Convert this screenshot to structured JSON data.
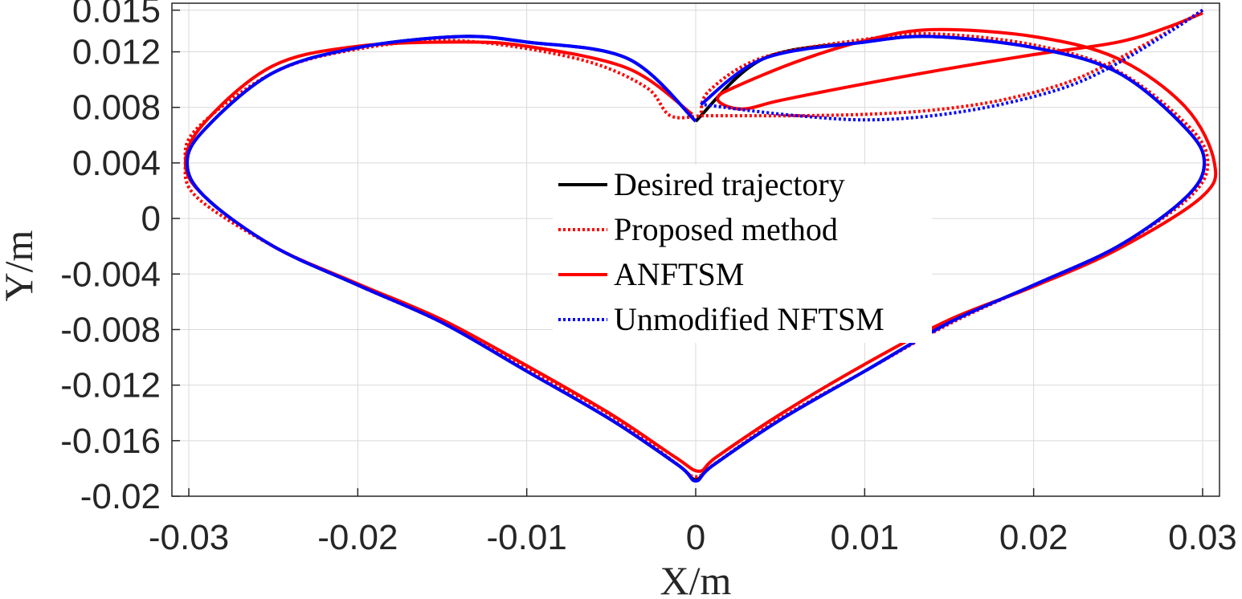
{
  "chart_data": {
    "type": "line",
    "title": "",
    "xlabel": "X/m",
    "ylabel": "Y/m",
    "xlim": [
      -0.031,
      0.031
    ],
    "ylim": [
      -0.02,
      0.0155
    ],
    "grid": true,
    "legend_position": "center",
    "x_ticks": [
      -0.03,
      -0.02,
      -0.01,
      0,
      0.01,
      0.02,
      0.03
    ],
    "x_tick_labels": [
      "-0.03",
      "-0.02",
      "-0.01",
      "0",
      "0.01",
      "0.02",
      "0.03"
    ],
    "y_ticks": [
      0.015,
      0.012,
      0.008,
      0.004,
      0,
      -0.004,
      -0.008,
      -0.012,
      -0.016,
      -0.02
    ],
    "y_tick_labels": [
      "0.015",
      "0.012",
      "0.008",
      "0.004",
      "0",
      "-0.004",
      "-0.008",
      "-0.012",
      "-0.016",
      "-0.02"
    ],
    "series": [
      {
        "name": "Desired trajectory",
        "color": "#000000",
        "style": "solid",
        "points": [
          [
            0,
            0.007
          ],
          [
            -0.004,
            0.0115
          ],
          [
            -0.01,
            0.0127
          ],
          [
            -0.014,
            0.0131
          ],
          [
            -0.02,
            0.0123
          ],
          [
            -0.025,
            0.0105
          ],
          [
            -0.029,
            0.0065
          ],
          [
            -0.0301,
            0.004
          ],
          [
            -0.029,
            0.0015
          ],
          [
            -0.025,
            -0.002
          ],
          [
            -0.02,
            -0.0048
          ],
          [
            -0.015,
            -0.0075
          ],
          [
            -0.01,
            -0.011
          ],
          [
            -0.005,
            -0.0145
          ],
          [
            -0.001,
            -0.0178
          ],
          [
            0,
            -0.0188
          ],
          [
            0.001,
            -0.0178
          ],
          [
            0.005,
            -0.0145
          ],
          [
            0.01,
            -0.011
          ],
          [
            0.015,
            -0.0075
          ],
          [
            0.02,
            -0.0048
          ],
          [
            0.025,
            -0.002
          ],
          [
            0.029,
            0.0015
          ],
          [
            0.0301,
            0.004
          ],
          [
            0.029,
            0.0065
          ],
          [
            0.025,
            0.0105
          ],
          [
            0.02,
            0.0123
          ],
          [
            0.014,
            0.0131
          ],
          [
            0.01,
            0.0127
          ],
          [
            0.004,
            0.0115
          ],
          [
            0,
            0.007
          ]
        ]
      },
      {
        "name": "Proposed method",
        "color": "#ff0000",
        "style": "dotted",
        "points": [
          [
            0.03,
            0.015
          ],
          [
            0.028,
            0.0135
          ],
          [
            0.025,
            0.0115
          ],
          [
            0.022,
            0.0098
          ],
          [
            0.018,
            0.0085
          ],
          [
            0.014,
            0.0078
          ],
          [
            0.01,
            0.0075
          ],
          [
            0.006,
            0.0074
          ],
          [
            0.003,
            0.0074
          ],
          [
            0.0005,
            0.0074
          ],
          [
            -0.0015,
            0.0074
          ],
          [
            -0.003,
            0.0095
          ],
          [
            -0.007,
            0.0115
          ],
          [
            -0.014,
            0.0128
          ],
          [
            -0.02,
            0.0122
          ],
          [
            -0.025,
            0.0105
          ],
          [
            -0.0295,
            0.0065
          ],
          [
            -0.0302,
            0.004
          ],
          [
            -0.0295,
            0.0015
          ],
          [
            -0.025,
            -0.002
          ],
          [
            -0.02,
            -0.0048
          ],
          [
            -0.015,
            -0.0075
          ],
          [
            -0.01,
            -0.0108
          ],
          [
            -0.005,
            -0.0142
          ],
          [
            -0.0012,
            -0.0176
          ],
          [
            0,
            -0.0186
          ],
          [
            0.0012,
            -0.0176
          ],
          [
            0.005,
            -0.0144
          ],
          [
            0.01,
            -0.011
          ],
          [
            0.015,
            -0.0076
          ],
          [
            0.02,
            -0.0048
          ],
          [
            0.025,
            -0.002
          ],
          [
            0.0292,
            0.0015
          ],
          [
            0.0303,
            0.004
          ],
          [
            0.0292,
            0.0066
          ],
          [
            0.025,
            0.0106
          ],
          [
            0.02,
            0.0125
          ],
          [
            0.014,
            0.0133
          ],
          [
            0.01,
            0.0129
          ],
          [
            0.004,
            0.0116
          ],
          [
            0.0008,
            0.0092
          ],
          [
            0.0003,
            0.0074
          ]
        ]
      },
      {
        "name": "ANFTSM",
        "color": "#ff0000",
        "style": "solid",
        "points": [
          [
            0.03,
            0.0148
          ],
          [
            0.028,
            0.0138
          ],
          [
            0.025,
            0.0127
          ],
          [
            0.02,
            0.0118
          ],
          [
            0.015,
            0.0108
          ],
          [
            0.01,
            0.0097
          ],
          [
            0.005,
            0.0085
          ],
          [
            0.003,
            0.0079
          ],
          [
            0.0018,
            0.0081
          ],
          [
            0.0013,
            0.0087
          ],
          [
            0.0022,
            0.0094
          ],
          [
            0.006,
            0.0113
          ],
          [
            0.01,
            0.0128
          ],
          [
            0.014,
            0.0136
          ],
          [
            0.02,
            0.0131
          ],
          [
            0.025,
            0.0115
          ],
          [
            0.029,
            0.008
          ],
          [
            0.0307,
            0.004
          ],
          [
            0.0299,
            0.0015
          ],
          [
            0.025,
            -0.0022
          ],
          [
            0.02,
            -0.0049
          ],
          [
            0.015,
            -0.0073
          ],
          [
            0.01,
            -0.0105
          ],
          [
            0.005,
            -0.0141
          ],
          [
            0.0012,
            -0.0172
          ],
          [
            0.0002,
            -0.0182
          ],
          [
            -0.0012,
            -0.0172
          ],
          [
            -0.005,
            -0.0141
          ],
          [
            -0.01,
            -0.0106
          ],
          [
            -0.015,
            -0.0073
          ],
          [
            -0.02,
            -0.0047
          ],
          [
            -0.025,
            -0.002
          ],
          [
            -0.029,
            0.0015
          ],
          [
            -0.0302,
            0.004
          ],
          [
            -0.029,
            0.007
          ],
          [
            -0.025,
            0.011
          ],
          [
            -0.02,
            0.0124
          ],
          [
            -0.014,
            0.0127
          ],
          [
            -0.01,
            0.0124
          ],
          [
            -0.004,
            0.0108
          ],
          [
            -0.0002,
            0.0075
          ]
        ]
      },
      {
        "name": "Unmodified NFTSM",
        "color": "#0000ff",
        "style": "dotted",
        "points": [
          [
            0.03,
            0.015
          ],
          [
            0.028,
            0.0134
          ],
          [
            0.025,
            0.0112
          ],
          [
            0.022,
            0.0095
          ],
          [
            0.018,
            0.0082
          ],
          [
            0.014,
            0.0074
          ],
          [
            0.01,
            0.0071
          ],
          [
            0.006,
            0.0074
          ],
          [
            0.003,
            0.0078
          ],
          [
            0.0005,
            0.0082
          ]
        ]
      },
      {
        "name": "Unmodified NFTSM",
        "color": "#0000ff",
        "style": "solid",
        "points": [
          [
            0.0003,
            0.0082
          ],
          [
            0.004,
            0.0115
          ],
          [
            0.01,
            0.0127
          ],
          [
            0.014,
            0.0131
          ],
          [
            0.02,
            0.0123
          ],
          [
            0.025,
            0.0105
          ],
          [
            0.029,
            0.0065
          ],
          [
            0.0301,
            0.004
          ],
          [
            0.029,
            0.0015
          ],
          [
            0.025,
            -0.002
          ],
          [
            0.02,
            -0.0048
          ],
          [
            0.015,
            -0.0075
          ],
          [
            0.01,
            -0.011
          ],
          [
            0.005,
            -0.0145
          ],
          [
            0.001,
            -0.0178
          ],
          [
            0,
            -0.0189
          ],
          [
            -0.001,
            -0.0178
          ],
          [
            -0.005,
            -0.0145
          ],
          [
            -0.01,
            -0.011
          ],
          [
            -0.015,
            -0.0075
          ],
          [
            -0.02,
            -0.0048
          ],
          [
            -0.025,
            -0.002
          ],
          [
            -0.029,
            0.0015
          ],
          [
            -0.0301,
            0.004
          ],
          [
            -0.029,
            0.0065
          ],
          [
            -0.025,
            0.0105
          ],
          [
            -0.02,
            0.0123
          ],
          [
            -0.014,
            0.0131
          ],
          [
            -0.01,
            0.0127
          ],
          [
            -0.004,
            0.0115
          ],
          [
            0,
            0.007
          ]
        ]
      }
    ],
    "legend": [
      {
        "label": "Desired trajectory",
        "color": "#000000",
        "style": "solid"
      },
      {
        "label": "Proposed method",
        "color": "#ff0000",
        "style": "dotted"
      },
      {
        "label": "ANFTSM",
        "color": "#ff0000",
        "style": "solid"
      },
      {
        "label": "Unmodified NFTSM",
        "color": "#0000ff",
        "style": "dotted"
      }
    ]
  }
}
